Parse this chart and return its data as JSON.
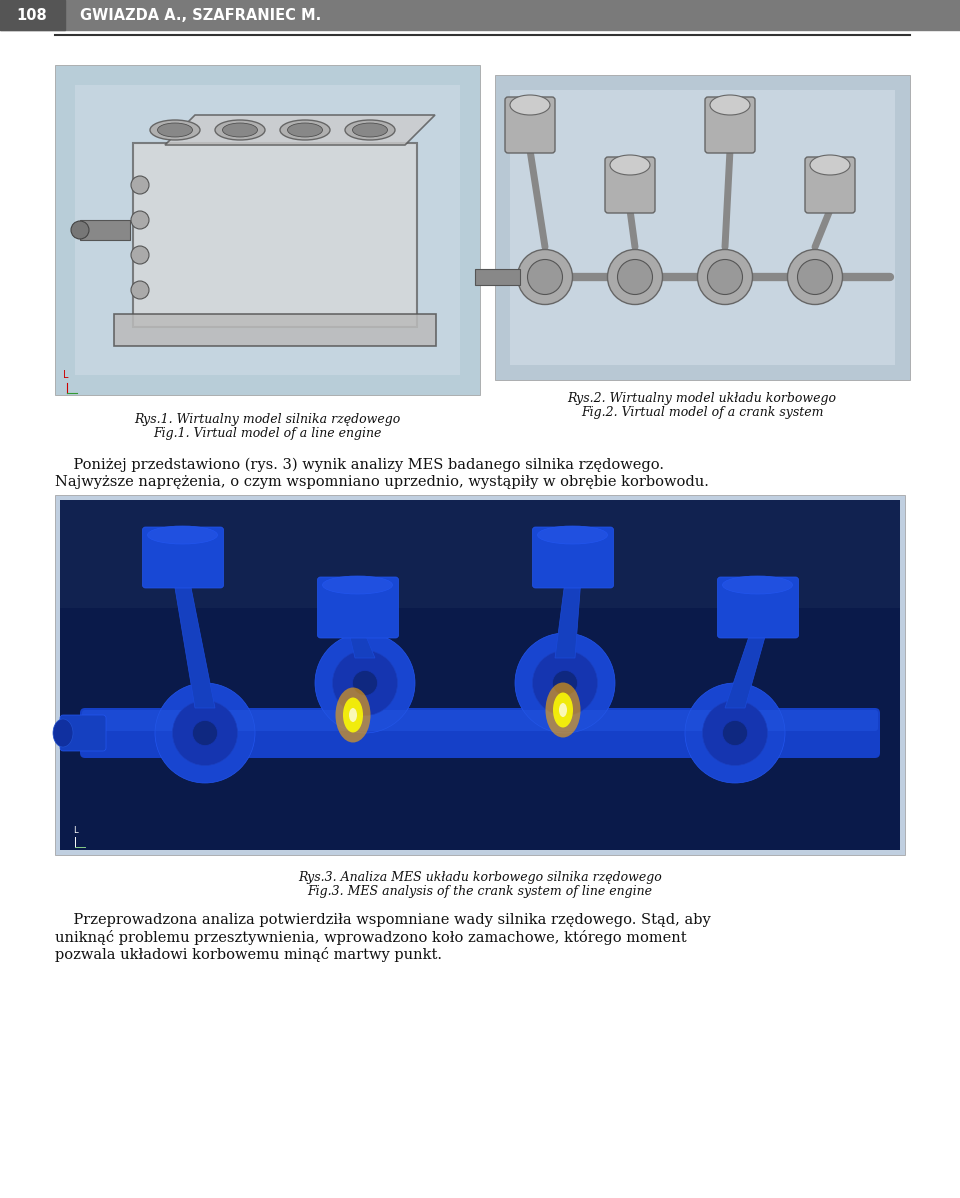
{
  "page_width": 9.6,
  "page_height": 11.98,
  "dpi": 100,
  "bg_color": "#ffffff",
  "header_bg": "#7a7a7a",
  "header_text_num": "108",
  "header_text_name": "GWIAZDA A., SZAFRANIEC M.",
  "header_text_color": "#ffffff",
  "header_fontsize": 10.5,
  "divider_color": "#333333",
  "img1_color": "#b8cdd8",
  "img2_color": "#b8c8d4",
  "img3_color": "#1a2e6e",
  "img3_light_color": "#c0cfe0",
  "fig1_caption_line1": "Rys.1. Wirtualny model silnika rzędowego",
  "fig1_caption_line2": "Fig.1. Virtual model of a line engine",
  "fig2_caption_line1": "Rys.2. Wirtualny model układu korbowego",
  "fig2_caption_line2": "Fig.2. Virtual model of a crank system",
  "fig3_caption_line1": "Rys.3. Analiza MES układu korbowego silnika rzędowego",
  "fig3_caption_line2": "Fig.3. MES analysis of the crank system of line engine",
  "caption_fontsize": 9.0,
  "para1_line1": "    Poniżej przedstawiono (rys. 3) wynik analizy MES badanego silnika rzędowego.",
  "para1_line2": "Najwyższe naprężenia, o czym wspomniano uprzednio, wystąpiły w obrębie korbowodu.",
  "para2_line1": "    Przeprowadzona analiza potwierdziła wspomniane wady silnika rzędowego. Stąd, aby",
  "para2_line2": "uniknąć problemu przesztywnienia, wprowadzono koło zamachowe, którego moment",
  "para2_line3": "pozwala układowi korbowemu minąć martwy punkt.",
  "body_fontsize": 10.5,
  "text_color": "#111111"
}
